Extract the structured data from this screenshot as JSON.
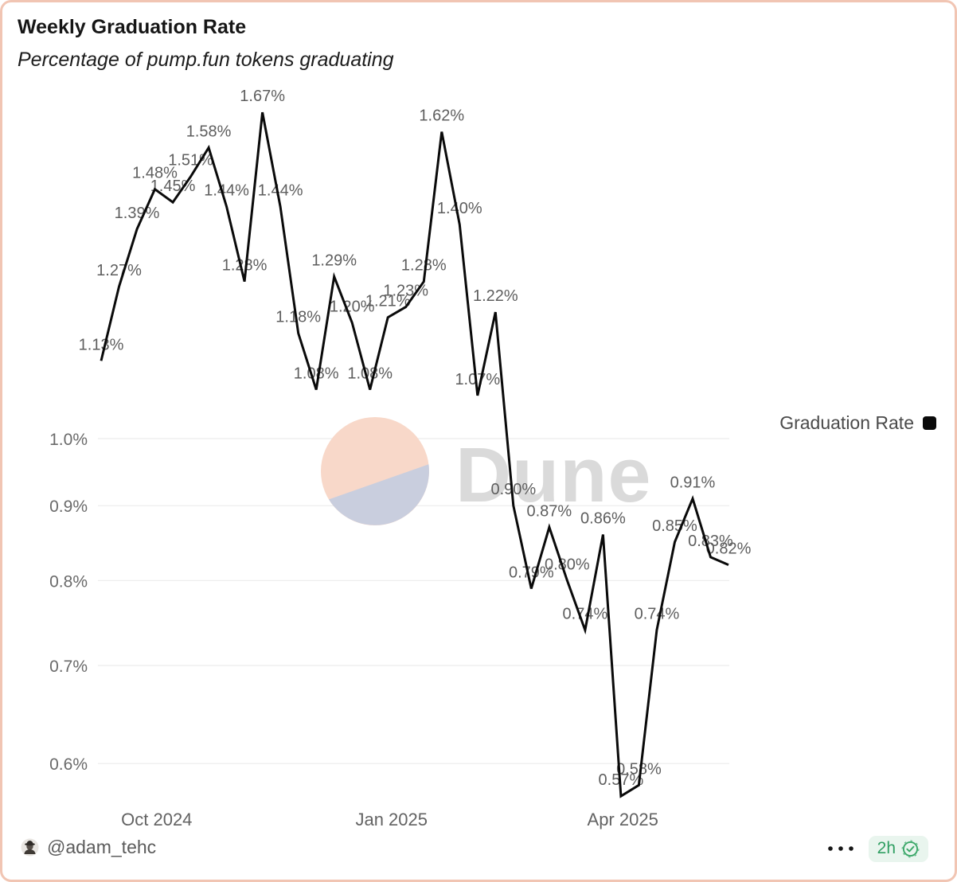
{
  "card": {
    "title": "Weekly Graduation Rate",
    "subtitle": "Percentage of pump.fun tokens graduating"
  },
  "legend": {
    "label": "Graduation Rate",
    "marker_color": "#0a0a0a"
  },
  "watermark": {
    "text": "Dune"
  },
  "footer": {
    "handle": "@adam_tehc",
    "freshness_age": "2h"
  },
  "colors": {
    "border": "#f1c5b3",
    "line": "#0a0a0a",
    "grid": "#ececec",
    "data_label": "#5e5e5e",
    "axis_label": "#6a6a6a",
    "green": "#2f9f62",
    "green_bg": "#e9f5ee",
    "watermark_text": "#dadada",
    "watermark_salmon": "#f8d8c9",
    "watermark_lavender": "#c9cede"
  },
  "chart_data": {
    "type": "line",
    "title": "Weekly Graduation Rate",
    "subtitle": "Percentage of pump.fun tokens graduating",
    "y_scale": "log",
    "grid": "horizontal-only",
    "legend_position": "top-right",
    "xlabel": "",
    "ylabel": "",
    "ylim": [
      0.55,
      1.75
    ],
    "series": [
      {
        "name": "Graduation Rate",
        "color": "#0a0a0a",
        "values": [
          1.13,
          1.27,
          1.39,
          1.48,
          1.45,
          1.51,
          1.58,
          1.44,
          1.28,
          1.67,
          1.44,
          1.18,
          1.08,
          1.29,
          1.2,
          1.08,
          1.21,
          1.23,
          1.28,
          1.62,
          1.4,
          1.07,
          1.22,
          0.9,
          0.79,
          0.87,
          0.8,
          0.74,
          0.86,
          0.57,
          0.58,
          0.74,
          0.85,
          0.91,
          0.83,
          0.82
        ],
        "point_labels": [
          "1.13%",
          "1.27%",
          "1.39%",
          "1.48%",
          "1.45%",
          "1.51%",
          "1.58%",
          "1.44%",
          "1.28%",
          "1.67%",
          "1.44%",
          "1.18%",
          "1.08%",
          "1.29%",
          "1.20%",
          "1.08%",
          "1.21%",
          "1.23%",
          "1.28%",
          "1.62%",
          "1.40%",
          "1.07%",
          "1.22%",
          "0.90%",
          "0.79%",
          "0.87%",
          "0.80%",
          "0.74%",
          "0.86%",
          "0.57%",
          "0.58%",
          "0.74%",
          "0.85%",
          "0.91%",
          "0.83%",
          "0.82%"
        ]
      }
    ],
    "x_ticks": [
      {
        "label": "Oct 2024",
        "index": 3.1
      },
      {
        "label": "Jan 2025",
        "index": 16.2
      },
      {
        "label": "Apr 2025",
        "index": 29.1
      }
    ],
    "y_ticks": [
      {
        "label": "1.0%",
        "value": 1.0
      },
      {
        "label": "0.9%",
        "value": 0.9
      },
      {
        "label": "0.8%",
        "value": 0.8
      },
      {
        "label": "0.7%",
        "value": 0.7
      },
      {
        "label": "0.6%",
        "value": 0.6
      }
    ]
  }
}
